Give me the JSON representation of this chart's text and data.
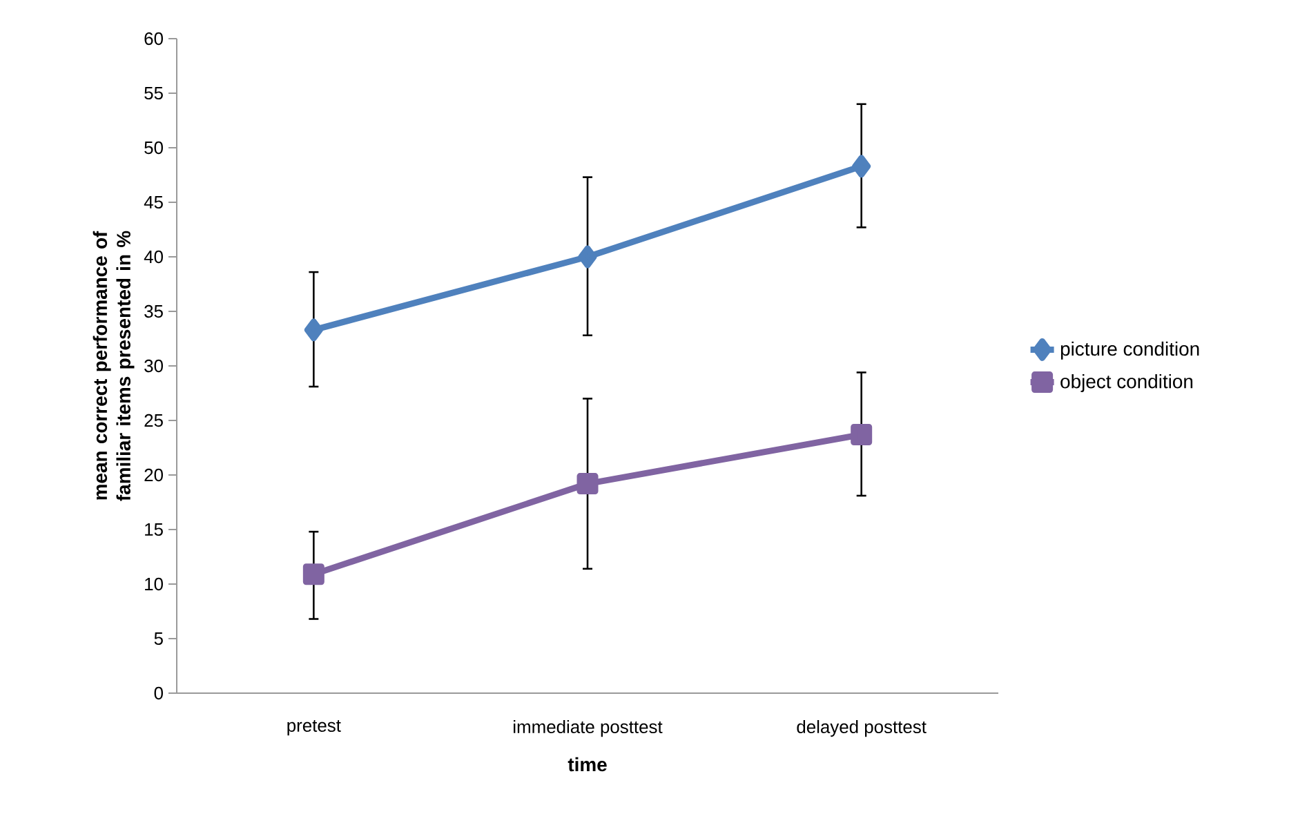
{
  "chart_data": {
    "type": "line",
    "xlabel": "time",
    "ylabel": "mean correct performance of familiar items presented in %",
    "categories": [
      "pretest",
      "immediate posttest",
      "delayed posttest"
    ],
    "series": [
      {
        "name": "picture condition",
        "color": "#4f81bd",
        "marker": "diamond",
        "values": [
          33.3,
          40,
          48.3
        ],
        "errors": [
          [
            28.1,
            38.6
          ],
          [
            32.8,
            47.3
          ],
          [
            42.7,
            54
          ]
        ]
      },
      {
        "name": "object condition",
        "color": "#8064a2",
        "marker": "square",
        "values": [
          10.9,
          19.2,
          23.7
        ],
        "errors": [
          [
            6.8,
            14.8
          ],
          [
            11.4,
            27
          ],
          [
            18.1,
            29.4
          ]
        ]
      }
    ],
    "ylim": [
      0,
      60
    ],
    "yticks": [
      0,
      5,
      10,
      15,
      20,
      25,
      30,
      35,
      40,
      45,
      50,
      55,
      60
    ],
    "legend": "right",
    "grid": false,
    "line_style": "solid"
  }
}
